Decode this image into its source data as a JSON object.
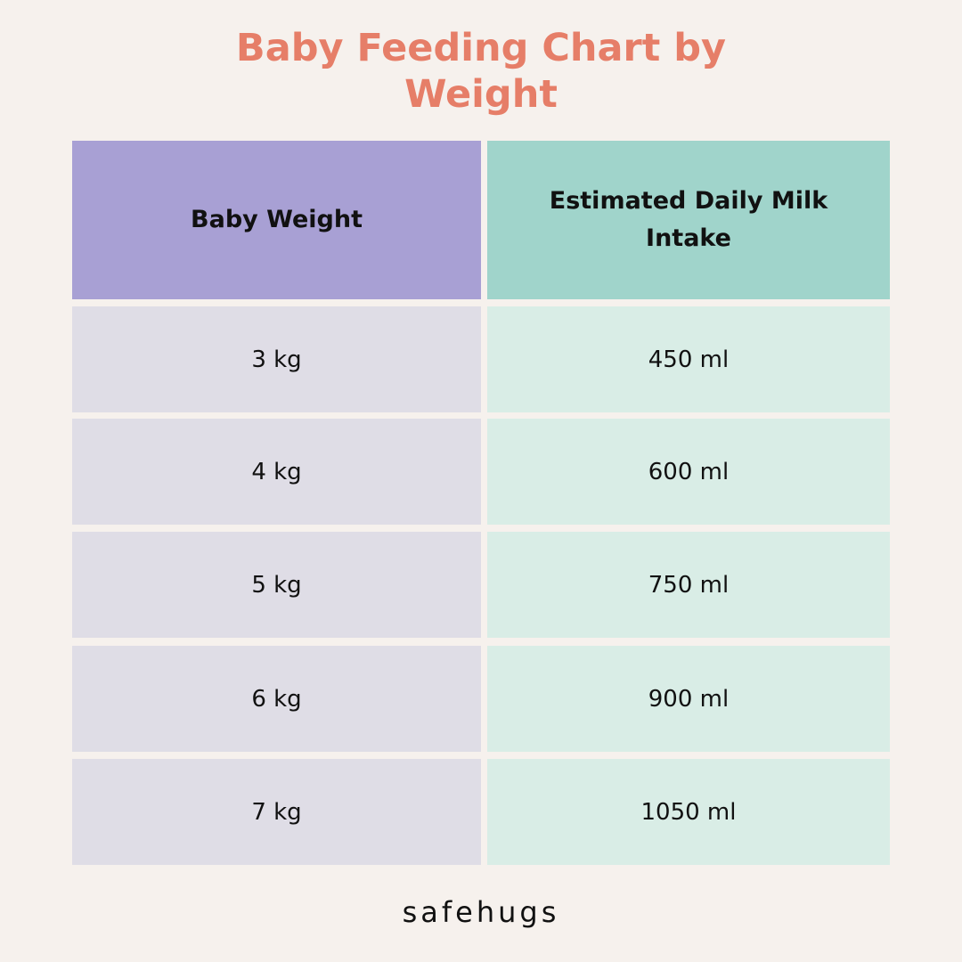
{
  "title": {
    "line1": "Baby Feeding Chart by",
    "line2": "Weight"
  },
  "table": {
    "headers": [
      "Baby Weight",
      "Estimated Daily Milk Intake"
    ],
    "rows": [
      [
        "3 kg",
        "450 ml"
      ],
      [
        "4 kg",
        "600 ml"
      ],
      [
        "5 kg",
        "750 ml"
      ],
      [
        "6 kg",
        "900 ml"
      ],
      [
        "7 kg",
        "1050 ml"
      ]
    ]
  },
  "brand": "safehugs",
  "colors": {
    "background": "#f6f1ed",
    "title": "#e67e68",
    "header_left": "#a8a0d4",
    "header_right": "#a0d4cb",
    "cell_left": "#dfdde6",
    "cell_right": "#d9ede6",
    "text": "#111111"
  }
}
